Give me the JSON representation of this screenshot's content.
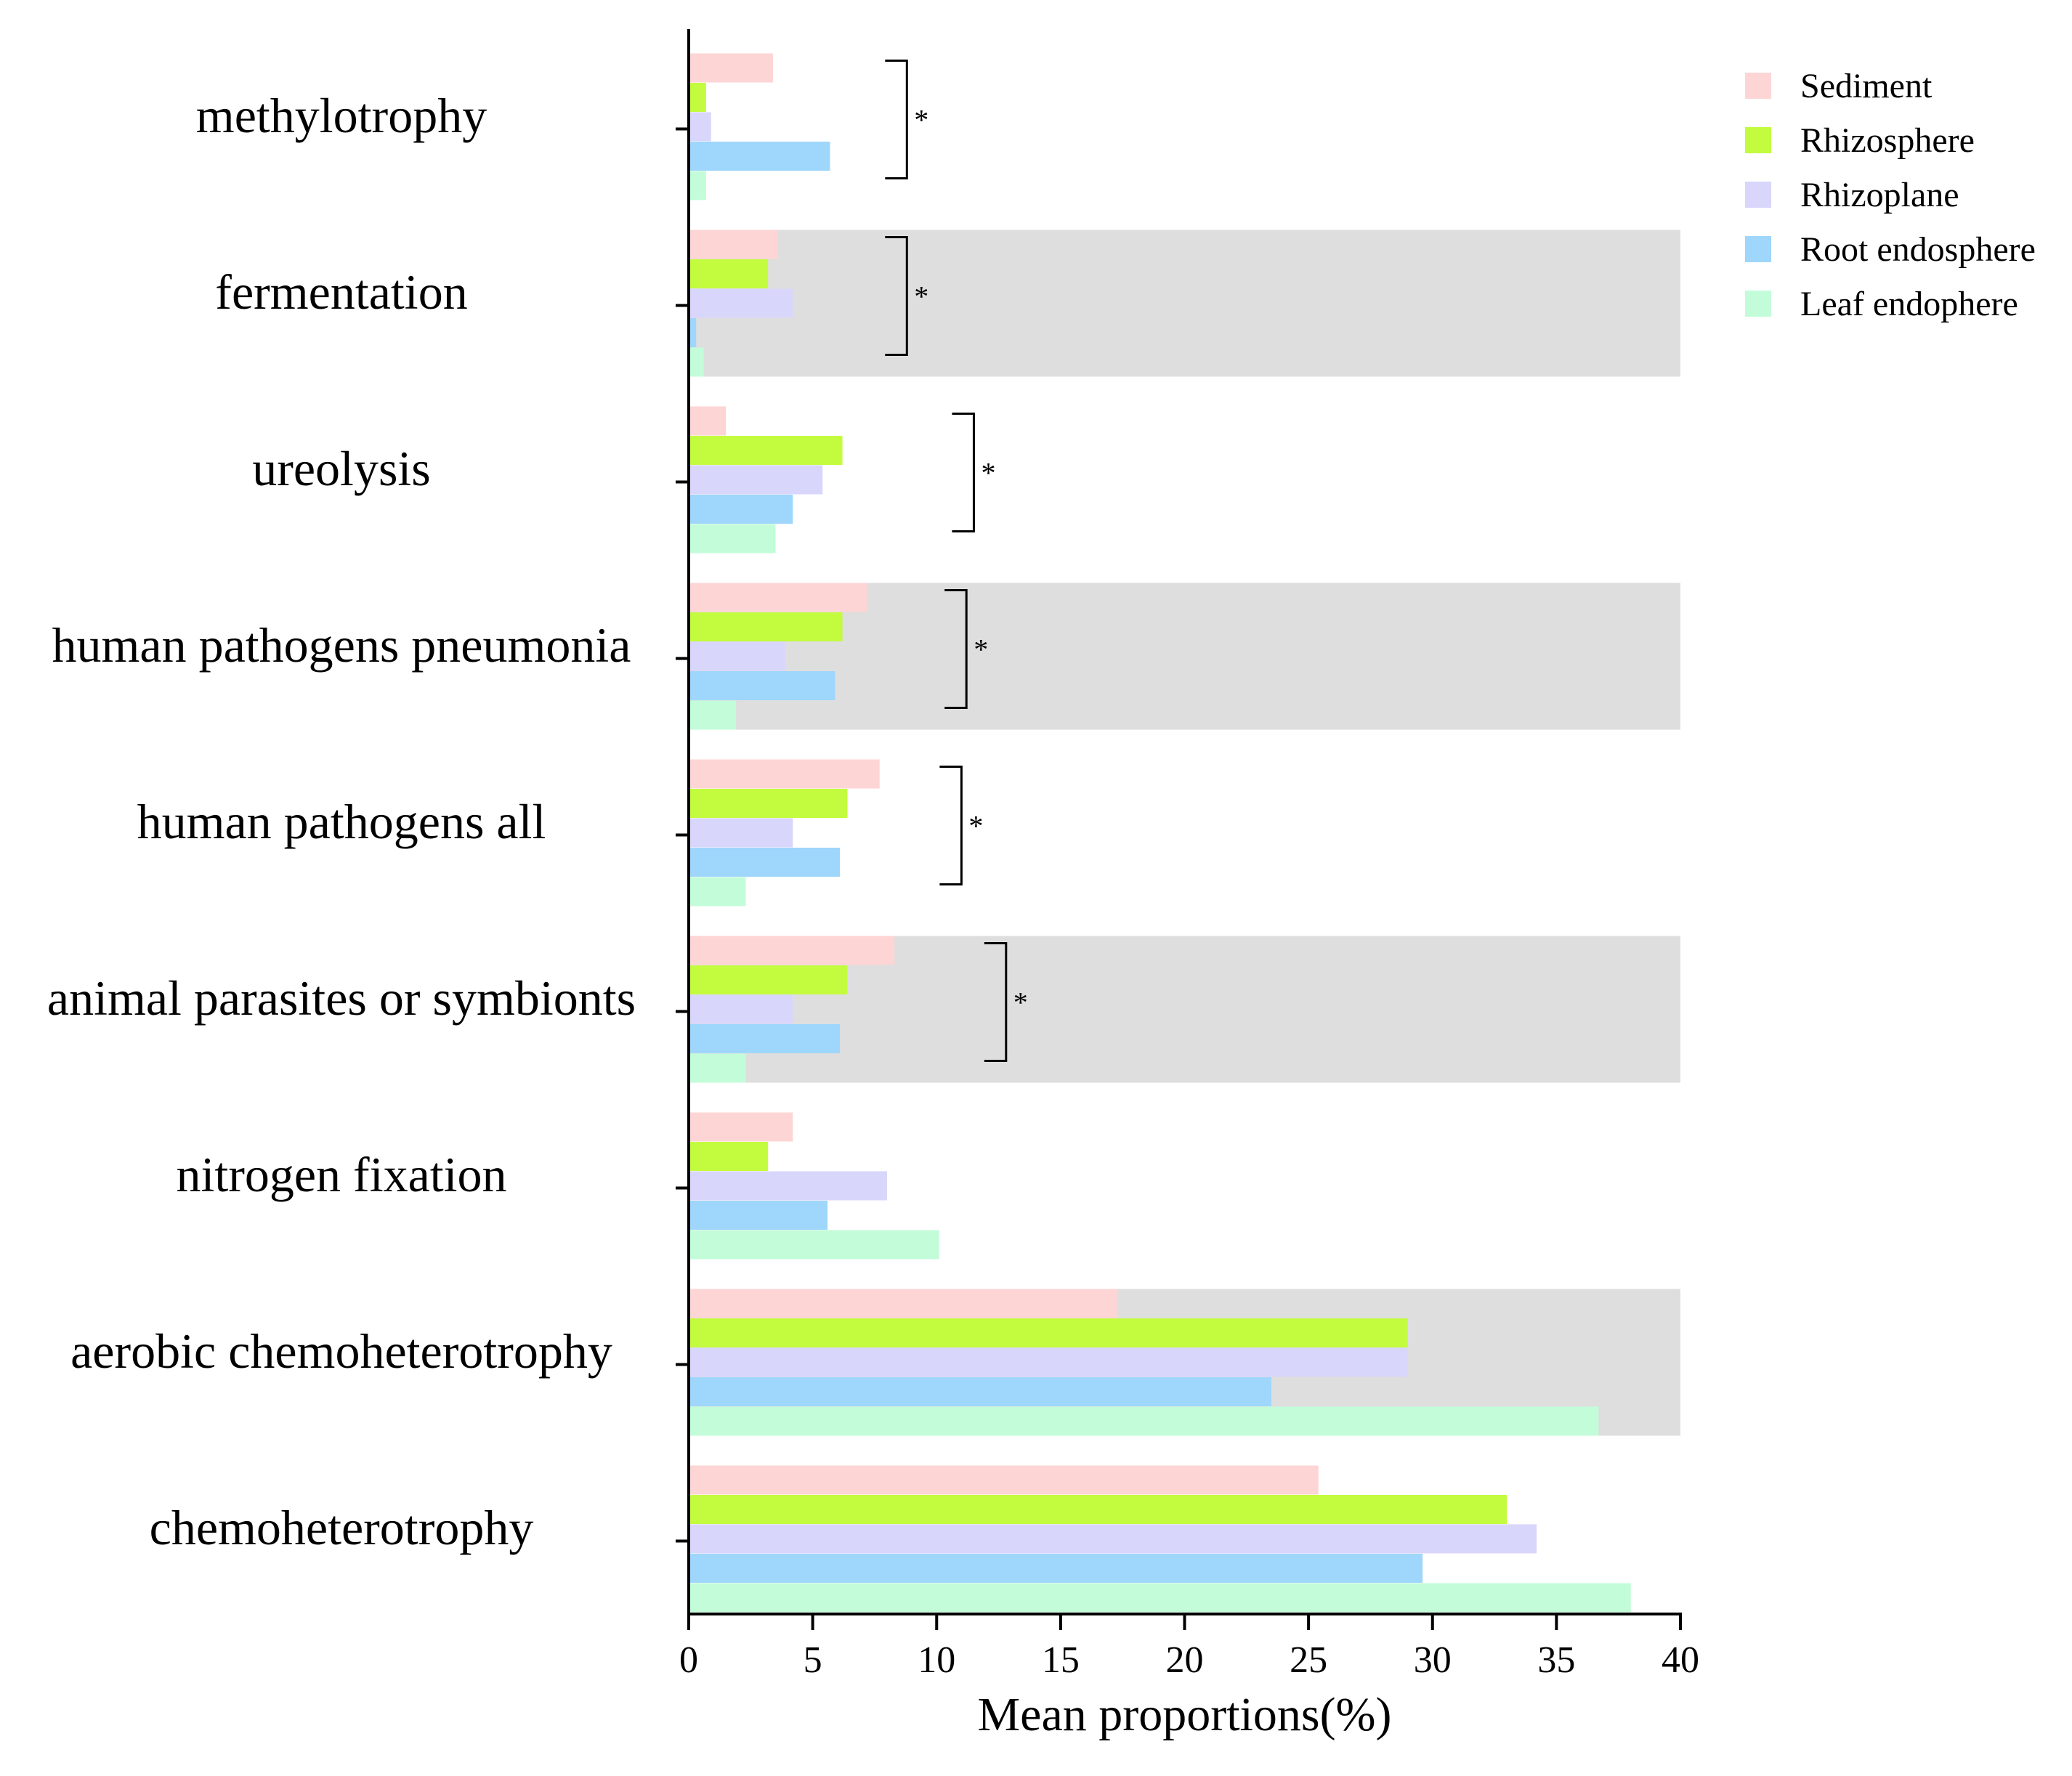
{
  "chart_data": {
    "type": "bar",
    "orientation": "horizontal",
    "title": "",
    "xlabel": "Mean proportions(%)",
    "ylabel": "",
    "xlim": [
      0,
      40
    ],
    "xticks": [
      "0",
      "5",
      "10",
      "15",
      "20",
      "25",
      "30",
      "35",
      "40"
    ],
    "grid": false,
    "legend_position": "top-right",
    "categories": [
      "methylotrophy",
      "fermentation",
      "ureolysis",
      "human pathogens pneumonia",
      "human pathogens all",
      "animal parasites or symbionts",
      "nitrogen fixation",
      "aerobic chemoheterotrophy",
      "chemoheterotrophy"
    ],
    "shaded_categories": [
      "fermentation",
      "human pathogens pneumonia",
      "animal parasites or symbionts",
      "aerobic chemoheterotrophy"
    ],
    "series": [
      {
        "name": "Sediment",
        "color": "#fdd5d5",
        "values": [
          3.4,
          3.6,
          1.5,
          7.2,
          7.7,
          8.3,
          4.2,
          17.3,
          25.4
        ]
      },
      {
        "name": "Rhizosphere",
        "color": "#c3fb3e",
        "values": [
          0.7,
          3.2,
          6.2,
          6.2,
          6.4,
          6.4,
          3.2,
          29.0,
          33.0
        ]
      },
      {
        "name": "Rhizoplane",
        "color": "#d8d6fb",
        "values": [
          0.9,
          4.2,
          5.4,
          3.9,
          4.2,
          4.2,
          8.0,
          29.0,
          34.2
        ]
      },
      {
        "name": "Root endosphere",
        "color": "#9fd6fb",
        "values": [
          5.7,
          0.3,
          4.2,
          5.9,
          6.1,
          6.1,
          5.6,
          23.5,
          29.6
        ]
      },
      {
        "name": "Leaf endophere",
        "color": "#c3fcd9",
        "values": [
          0.7,
          0.6,
          3.5,
          1.9,
          2.3,
          2.3,
          10.1,
          36.7,
          38.0
        ]
      }
    ],
    "annotations": [
      {
        "category": "methylotrophy",
        "text": "*",
        "bracket_x": 8.8
      },
      {
        "category": "fermentation",
        "text": "*",
        "bracket_x": 8.8
      },
      {
        "category": "ureolysis",
        "text": "*",
        "bracket_x": 11.5
      },
      {
        "category": "human pathogens pneumonia",
        "text": "*",
        "bracket_x": 11.2
      },
      {
        "category": "human pathogens all",
        "text": "*",
        "bracket_x": 11.0
      },
      {
        "category": "animal parasites or symbionts",
        "text": "*",
        "bracket_x": 12.8
      }
    ]
  }
}
